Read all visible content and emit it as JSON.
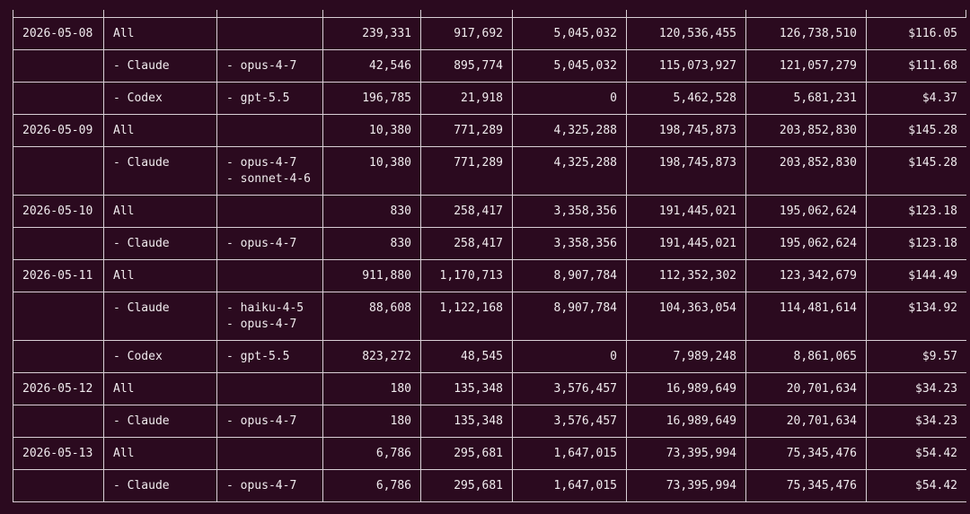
{
  "rows": [
    {
      "date": "2026-05-08",
      "agent": "All",
      "models": [],
      "c1": "239,331",
      "c2": "917,692",
      "c3": "5,045,032",
      "c4": "120,536,455",
      "c5": "126,738,510",
      "cost": "$116.05"
    },
    {
      "date": "",
      "agent": "- Claude",
      "models": [
        "- opus-4-7"
      ],
      "c1": "42,546",
      "c2": "895,774",
      "c3": "5,045,032",
      "c4": "115,073,927",
      "c5": "121,057,279",
      "cost": "$111.68"
    },
    {
      "date": "",
      "agent": "- Codex",
      "models": [
        "- gpt-5.5"
      ],
      "c1": "196,785",
      "c2": "21,918",
      "c3": "0",
      "c4": "5,462,528",
      "c5": "5,681,231",
      "cost": "$4.37"
    },
    {
      "date": "2026-05-09",
      "agent": "All",
      "models": [],
      "c1": "10,380",
      "c2": "771,289",
      "c3": "4,325,288",
      "c4": "198,745,873",
      "c5": "203,852,830",
      "cost": "$145.28"
    },
    {
      "date": "",
      "agent": "- Claude",
      "models": [
        "- opus-4-7",
        "- sonnet-4-6"
      ],
      "c1": "10,380",
      "c2": "771,289",
      "c3": "4,325,288",
      "c4": "198,745,873",
      "c5": "203,852,830",
      "cost": "$145.28"
    },
    {
      "date": "2026-05-10",
      "agent": "All",
      "models": [],
      "c1": "830",
      "c2": "258,417",
      "c3": "3,358,356",
      "c4": "191,445,021",
      "c5": "195,062,624",
      "cost": "$123.18"
    },
    {
      "date": "",
      "agent": "- Claude",
      "models": [
        "- opus-4-7"
      ],
      "c1": "830",
      "c2": "258,417",
      "c3": "3,358,356",
      "c4": "191,445,021",
      "c5": "195,062,624",
      "cost": "$123.18"
    },
    {
      "date": "2026-05-11",
      "agent": "All",
      "models": [],
      "c1": "911,880",
      "c2": "1,170,713",
      "c3": "8,907,784",
      "c4": "112,352,302",
      "c5": "123,342,679",
      "cost": "$144.49"
    },
    {
      "date": "",
      "agent": "- Claude",
      "models": [
        "- haiku-4-5",
        "- opus-4-7"
      ],
      "c1": "88,608",
      "c2": "1,122,168",
      "c3": "8,907,784",
      "c4": "104,363,054",
      "c5": "114,481,614",
      "cost": "$134.92"
    },
    {
      "date": "",
      "agent": "- Codex",
      "models": [
        "- gpt-5.5"
      ],
      "c1": "823,272",
      "c2": "48,545",
      "c3": "0",
      "c4": "7,989,248",
      "c5": "8,861,065",
      "cost": "$9.57"
    },
    {
      "date": "2026-05-12",
      "agent": "All",
      "models": [],
      "c1": "180",
      "c2": "135,348",
      "c3": "3,576,457",
      "c4": "16,989,649",
      "c5": "20,701,634",
      "cost": "$34.23"
    },
    {
      "date": "",
      "agent": "- Claude",
      "models": [
        "- opus-4-7"
      ],
      "c1": "180",
      "c2": "135,348",
      "c3": "3,576,457",
      "c4": "16,989,649",
      "c5": "20,701,634",
      "cost": "$34.23"
    },
    {
      "date": "2026-05-13",
      "agent": "All",
      "models": [],
      "c1": "6,786",
      "c2": "295,681",
      "c3": "1,647,015",
      "c4": "73,395,994",
      "c5": "75,345,476",
      "cost": "$54.42"
    },
    {
      "date": "",
      "agent": "- Claude",
      "models": [
        "- opus-4-7"
      ],
      "c1": "6,786",
      "c2": "295,681",
      "c3": "1,647,015",
      "c4": "73,395,994",
      "c5": "75,345,476",
      "cost": "$54.42"
    }
  ],
  "colors": {
    "background": "#2b0a1f",
    "text": "#f1ecef",
    "grid": "#d9cfd6"
  }
}
